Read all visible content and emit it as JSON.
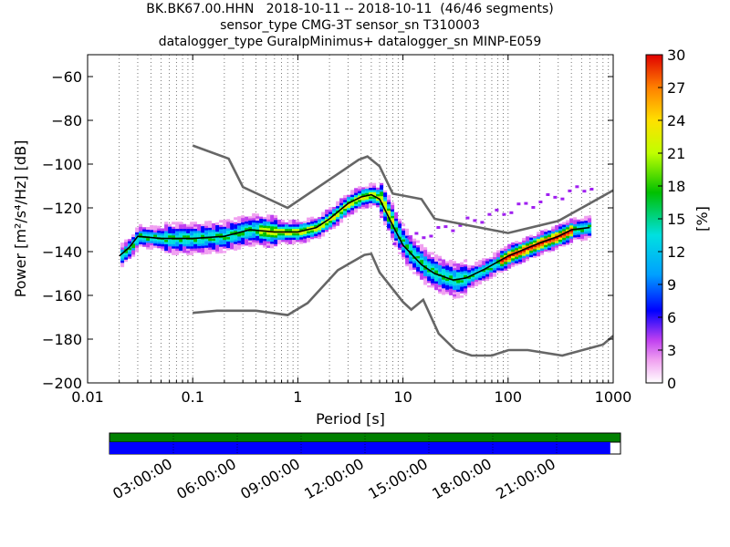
{
  "title": {
    "line1": "BK.BK67.00.HHN   2018-10-11 -- 2018-10-11  (46/46 segments)",
    "line2": "sensor_type CMG-3T sensor_sn T310003",
    "line3": "datalogger_type GuralpMinimus+ datalogger_sn MINP-E059"
  },
  "chart_data": {
    "type": "heatmap",
    "title": "BK.BK67.00.HHN   2018-10-11 -- 2018-10-11  (46/46 segments)",
    "xlabel": "Period [s]",
    "ylabel": "Power [m²/s⁴/Hz] [dB]",
    "x_scale": "log",
    "xlim": [
      0.01,
      1000
    ],
    "ylim": [
      -200,
      -50
    ],
    "x_ticks": [
      "0.01",
      "0.1",
      "1",
      "10",
      "100",
      "1000"
    ],
    "x_tick_values": [
      0.01,
      0.1,
      1,
      10,
      100,
      1000
    ],
    "y_ticks": [
      -60,
      -80,
      -100,
      -120,
      -140,
      -160,
      -180,
      -200
    ],
    "grid": "dotted vertical",
    "colorbar": {
      "label": "[%]",
      "range": [
        0,
        30
      ],
      "ticks": [
        0,
        3,
        6,
        9,
        12,
        15,
        18,
        21,
        24,
        27,
        30
      ]
    },
    "series": [
      {
        "name": "",
        "role": "mode",
        "color": "#000000",
        "points": [
          [
            0.02,
            -142
          ],
          [
            0.025,
            -138
          ],
          [
            0.03,
            -133
          ],
          [
            0.05,
            -134
          ],
          [
            0.1,
            -134
          ],
          [
            0.2,
            -133
          ],
          [
            0.35,
            -130
          ],
          [
            0.6,
            -131
          ],
          [
            1,
            -131
          ],
          [
            1.5,
            -129
          ],
          [
            2,
            -125
          ],
          [
            3,
            -118
          ],
          [
            4,
            -115
          ],
          [
            5,
            -114
          ],
          [
            6,
            -116
          ],
          [
            8,
            -128
          ],
          [
            10,
            -137
          ],
          [
            15,
            -146
          ],
          [
            20,
            -150
          ],
          [
            30,
            -153
          ],
          [
            40,
            -152
          ],
          [
            60,
            -148
          ],
          [
            100,
            -142
          ],
          [
            200,
            -136
          ],
          [
            300,
            -133
          ],
          [
            400,
            -130
          ],
          [
            600,
            -129
          ]
        ]
      },
      {
        "name": "",
        "role": "upper reference",
        "color": "#666666",
        "points": [
          [
            0.1,
            -91.5
          ],
          [
            0.22,
            -97.5
          ],
          [
            0.3,
            -110.5
          ],
          [
            0.8,
            -120
          ],
          [
            3.8,
            -98
          ],
          [
            4.6,
            -96.5
          ],
          [
            6,
            -101
          ],
          [
            8,
            -113.5
          ],
          [
            15,
            -116
          ],
          [
            20,
            -125
          ],
          [
            100,
            -131.5
          ],
          [
            300,
            -126
          ],
          [
            1000,
            -112
          ]
        ]
      },
      {
        "name": "",
        "role": "lower reference",
        "color": "#666666",
        "points": [
          [
            0.1,
            -168
          ],
          [
            0.17,
            -167
          ],
          [
            0.4,
            -167
          ],
          [
            0.8,
            -169
          ],
          [
            1.24,
            -163.5
          ],
          [
            2.4,
            -148.5
          ],
          [
            4.3,
            -141.5
          ],
          [
            5,
            -141
          ],
          [
            6,
            -149.5
          ],
          [
            10,
            -163
          ],
          [
            12,
            -166.5
          ],
          [
            15.6,
            -162
          ],
          [
            21.9,
            -177.5
          ],
          [
            31.6,
            -185
          ],
          [
            45,
            -187.5
          ],
          [
            70,
            -187.5
          ],
          [
            101,
            -185
          ],
          [
            154,
            -185
          ],
          [
            328,
            -187.5
          ],
          [
            800,
            -182.5
          ],
          [
            1000,
            -178.5
          ]
        ]
      }
    ]
  },
  "timeline": {
    "tick_labels": [
      "03:00:00",
      "06:00:00",
      "09:00:00",
      "12:00:00",
      "15:00:00",
      "18:00:00",
      "21:00:00"
    ],
    "coverage_fraction": 0.98,
    "colors": {
      "top": "#008000",
      "bottom": "#0000ff"
    }
  }
}
